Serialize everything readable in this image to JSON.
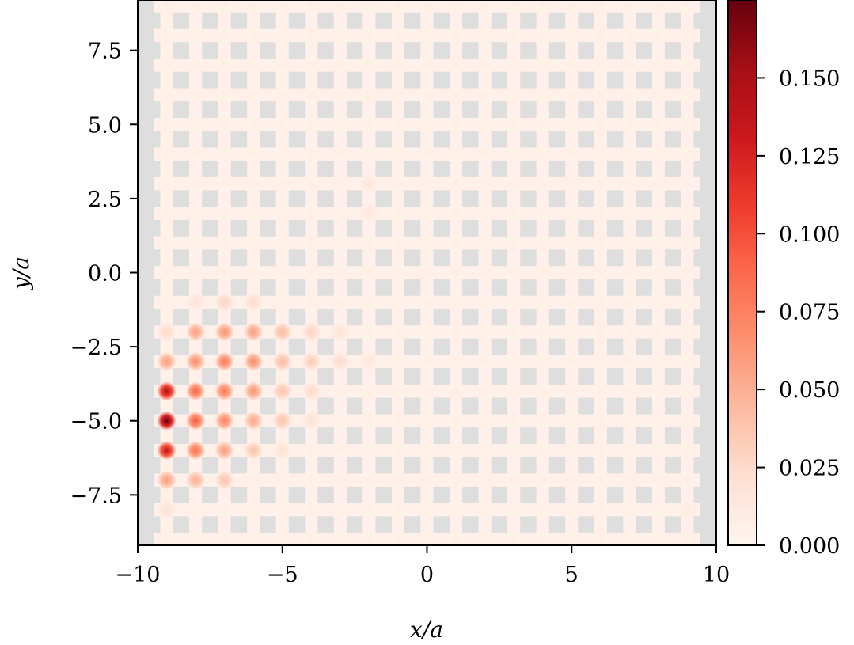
{
  "chart_data": {
    "type": "heatmap",
    "title": "",
    "xlabel": "x/a",
    "ylabel": "y/a",
    "xlim": [
      -10,
      10
    ],
    "ylim": [
      -9.2,
      9.2
    ],
    "xticks": [
      -10,
      -5,
      0,
      5,
      10
    ],
    "xtick_labels": [
      "−10",
      "−5",
      "0",
      "5",
      "10"
    ],
    "yticks": [
      7.5,
      5.0,
      2.5,
      0.0,
      -2.5,
      -5.0,
      -7.5
    ],
    "ytick_labels": [
      "7.5",
      "5.0",
      "2.5",
      "0.0",
      "−2.5",
      "−5.0",
      "−7.5"
    ],
    "colormap": "Reds",
    "colorbar": {
      "range": [
        0,
        0.175
      ],
      "ticks": [
        0.0,
        0.025,
        0.05,
        0.075,
        0.1,
        0.125,
        0.15
      ],
      "tick_labels": [
        "0.000",
        "0.025",
        "0.050",
        "0.075",
        "0.100",
        "0.125",
        "0.150"
      ]
    },
    "background_color": "#dedede",
    "lattice": {
      "x_sites": [
        -9,
        -8,
        -7,
        -6,
        -5,
        -4,
        -3,
        -2,
        -1,
        0,
        1,
        2,
        3,
        4,
        5,
        6,
        7,
        8,
        9
      ],
      "y_sites": [
        9,
        8,
        7,
        6,
        5,
        4,
        3,
        2,
        1,
        0,
        -1,
        -2,
        -3,
        -4,
        -5,
        -6,
        -7,
        -8,
        -9
      ],
      "base_value": 0.005,
      "peaks": [
        {
          "x": -9,
          "y": -4,
          "value": 0.15
        },
        {
          "x": -9,
          "y": -5,
          "value": 0.175
        },
        {
          "x": -9,
          "y": -6,
          "value": 0.14
        },
        {
          "x": -9,
          "y": -3,
          "value": 0.06
        },
        {
          "x": -9,
          "y": -7,
          "value": 0.06
        },
        {
          "x": -9,
          "y": -2,
          "value": 0.025
        },
        {
          "x": -9,
          "y": -8,
          "value": 0.02
        },
        {
          "x": -8,
          "y": -4,
          "value": 0.09
        },
        {
          "x": -8,
          "y": -5,
          "value": 0.095
        },
        {
          "x": -8,
          "y": -6,
          "value": 0.085
        },
        {
          "x": -8,
          "y": -3,
          "value": 0.07
        },
        {
          "x": -8,
          "y": -7,
          "value": 0.05
        },
        {
          "x": -8,
          "y": -2,
          "value": 0.06
        },
        {
          "x": -8,
          "y": -1,
          "value": 0.02
        },
        {
          "x": -7,
          "y": -4,
          "value": 0.08
        },
        {
          "x": -7,
          "y": -5,
          "value": 0.075
        },
        {
          "x": -7,
          "y": -6,
          "value": 0.06
        },
        {
          "x": -7,
          "y": -3,
          "value": 0.08
        },
        {
          "x": -7,
          "y": -7,
          "value": 0.04
        },
        {
          "x": -7,
          "y": -2,
          "value": 0.065
        },
        {
          "x": -7,
          "y": -1,
          "value": 0.03
        },
        {
          "x": -6,
          "y": -4,
          "value": 0.065
        },
        {
          "x": -6,
          "y": -5,
          "value": 0.055
        },
        {
          "x": -6,
          "y": -6,
          "value": 0.04
        },
        {
          "x": -6,
          "y": -3,
          "value": 0.07
        },
        {
          "x": -6,
          "y": -2,
          "value": 0.06
        },
        {
          "x": -6,
          "y": -1,
          "value": 0.025
        },
        {
          "x": -5,
          "y": -4,
          "value": 0.04
        },
        {
          "x": -5,
          "y": -5,
          "value": 0.04
        },
        {
          "x": -5,
          "y": -3,
          "value": 0.045
        },
        {
          "x": -5,
          "y": -2,
          "value": 0.045
        },
        {
          "x": -5,
          "y": -6,
          "value": 0.02
        },
        {
          "x": -4,
          "y": -3,
          "value": 0.035
        },
        {
          "x": -4,
          "y": -4,
          "value": 0.025
        },
        {
          "x": -4,
          "y": -2,
          "value": 0.03
        },
        {
          "x": -4,
          "y": -5,
          "value": 0.02
        },
        {
          "x": -3,
          "y": -3,
          "value": 0.025
        },
        {
          "x": -3,
          "y": -2,
          "value": 0.02
        },
        {
          "x": -2,
          "y": -3,
          "value": 0.015
        },
        {
          "x": -2,
          "y": 2,
          "value": 0.015
        },
        {
          "x": -2,
          "y": 3,
          "value": 0.015
        },
        {
          "x": 9,
          "y": -8,
          "value": 0.012
        }
      ]
    }
  }
}
